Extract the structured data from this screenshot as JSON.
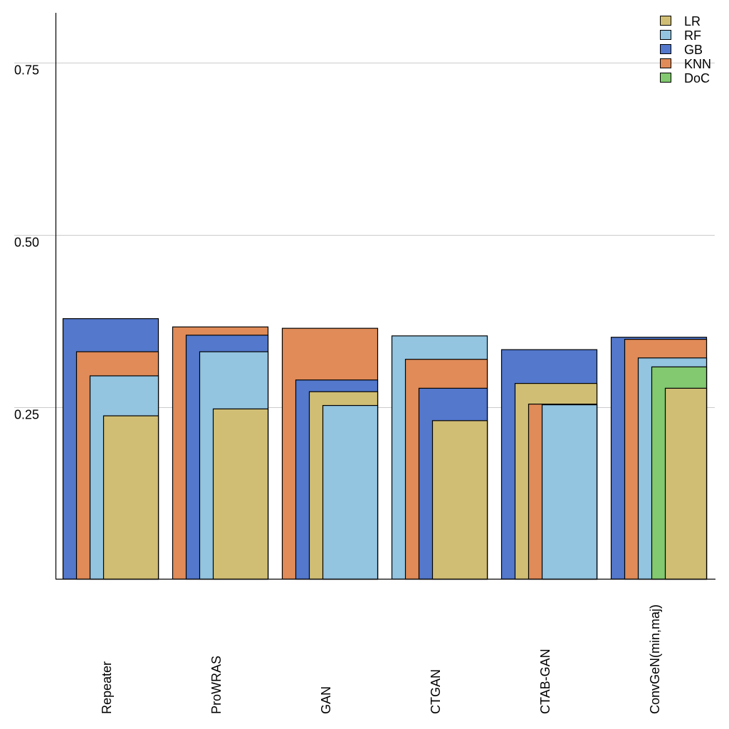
{
  "chart_data": {
    "type": "bar",
    "title": "",
    "xlabel": "",
    "ylabel": "",
    "ylim": [
      0,
      0.82
    ],
    "yticks": [
      0.25,
      0.5,
      0.75
    ],
    "ytick_labels": [
      "0.25",
      "0.50",
      "0.75"
    ],
    "grid": true,
    "legend_position": "top-right",
    "categories": [
      "Repeater",
      "ProWRAS",
      "GAN",
      "CTGAN",
      "CTAB-GAN",
      "ConvGeN(min,maj)"
    ],
    "series": [
      {
        "name": "LR",
        "color": "#d0be74",
        "values": [
          0.237,
          0.247,
          0.272,
          0.23,
          0.284,
          0.277
        ]
      },
      {
        "name": "RF",
        "color": "#93c4e0",
        "values": [
          0.295,
          0.33,
          0.252,
          0.353,
          0.253,
          0.321
        ]
      },
      {
        "name": "GB",
        "color": "#5378cc",
        "values": [
          0.378,
          0.354,
          0.289,
          0.277,
          0.333,
          0.351
        ]
      },
      {
        "name": "KNN",
        "color": "#e08b58",
        "values": [
          0.33,
          0.366,
          0.364,
          0.319,
          0.254,
          0.348
        ]
      },
      {
        "name": "DoC",
        "color": "#82c96f",
        "values": [
          null,
          null,
          null,
          null,
          null,
          0.308
        ]
      }
    ]
  }
}
